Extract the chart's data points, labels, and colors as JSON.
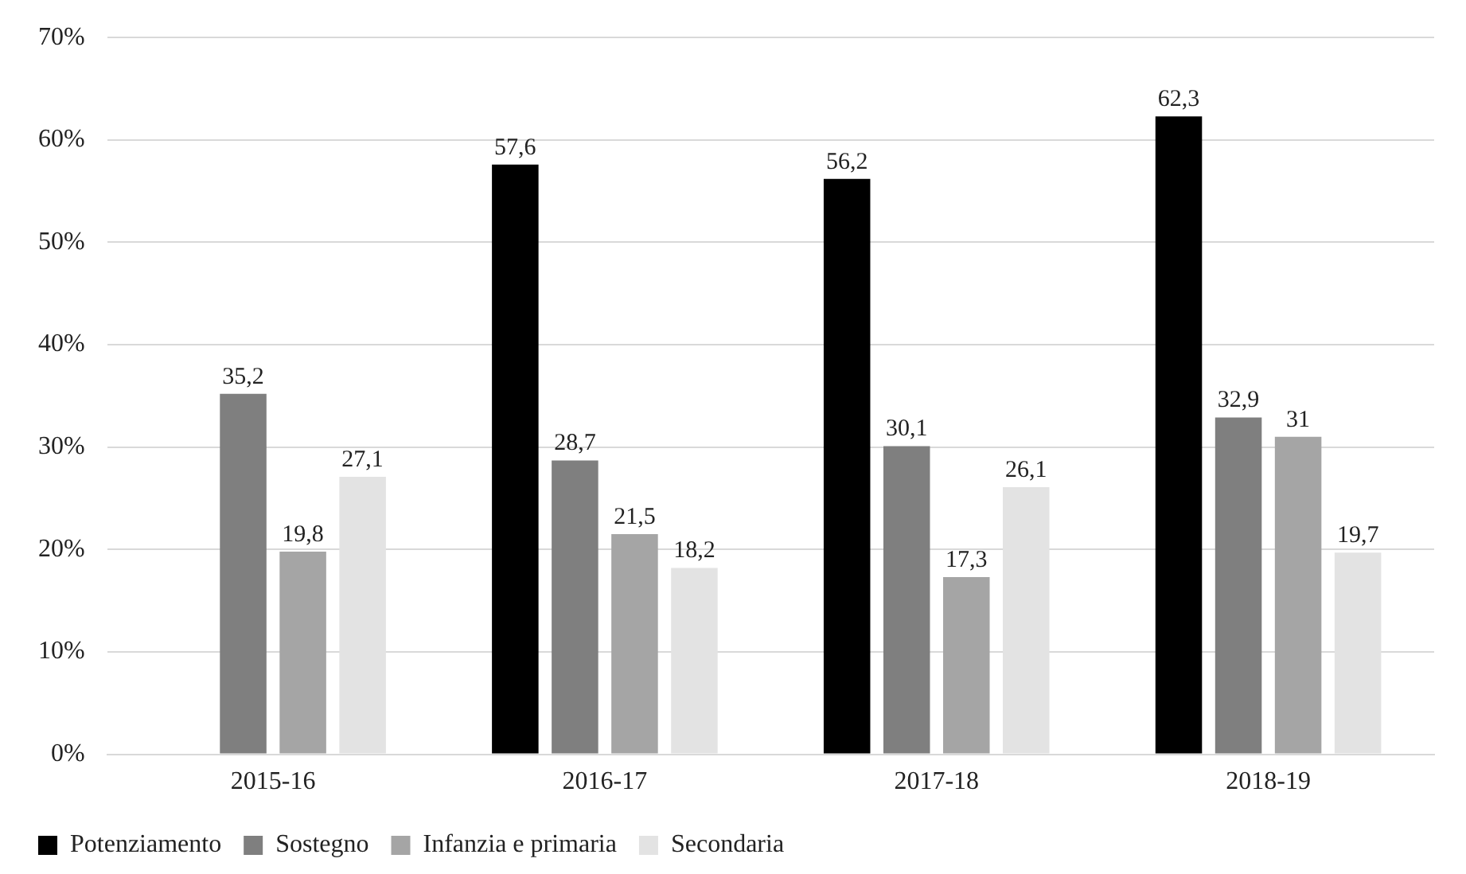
{
  "chart_data": {
    "type": "bar",
    "categories": [
      "2015-16",
      "2016-17",
      "2017-18",
      "2018-19"
    ],
    "series": [
      {
        "name": "Potenziamento",
        "color": "#000000",
        "values": [
          null,
          57.6,
          56.2,
          62.3
        ],
        "value_labels": [
          null,
          "57,6",
          "56,2",
          "62,3"
        ]
      },
      {
        "name": "Sostegno",
        "color": "#7f7f7f",
        "values": [
          35.2,
          28.7,
          30.1,
          32.9
        ],
        "value_labels": [
          "35,2",
          "28,7",
          "30,1",
          "32,9"
        ]
      },
      {
        "name": "Infanzia e primaria",
        "color": "#a5a5a5",
        "values": [
          19.8,
          21.5,
          17.3,
          31
        ],
        "value_labels": [
          "19,8",
          "21,5",
          "17,3",
          "31"
        ]
      },
      {
        "name": "Secondaria",
        "color": "#e3e3e3",
        "values": [
          27.1,
          18.2,
          26.1,
          19.7
        ],
        "value_labels": [
          "27,1",
          "18,2",
          "26,1",
          "19,7"
        ]
      }
    ],
    "ylim": [
      0,
      70
    ],
    "yticks": [
      {
        "value": 0,
        "label": "0%"
      },
      {
        "value": 10,
        "label": "10%"
      },
      {
        "value": 20,
        "label": "20%"
      },
      {
        "value": 30,
        "label": "30%"
      },
      {
        "value": 40,
        "label": "40%"
      },
      {
        "value": 50,
        "label": "50%"
      },
      {
        "value": 60,
        "label": "60%"
      },
      {
        "value": 70,
        "label": "70%"
      }
    ],
    "grid": "y",
    "legend": "bottom left"
  }
}
